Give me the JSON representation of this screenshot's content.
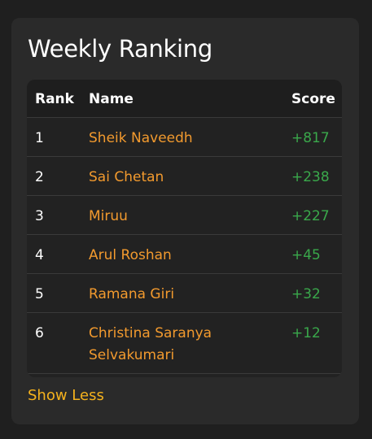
{
  "ranking": {
    "title": "Weekly Ranking",
    "columns": {
      "rank": "Rank",
      "name": "Name",
      "score": "Score"
    },
    "rows": [
      {
        "rank": "1",
        "name": "Sheik Naveedh",
        "score": "+817"
      },
      {
        "rank": "2",
        "name": "Sai Chetan",
        "score": "+238"
      },
      {
        "rank": "3",
        "name": "Miruu",
        "score": "+227"
      },
      {
        "rank": "4",
        "name": "Arul Roshan",
        "score": "+45"
      },
      {
        "rank": "5",
        "name": "Ramana Giri",
        "score": "+32"
      },
      {
        "rank": "6",
        "name": "Christina Saranya Selvakumari",
        "score": "+12"
      }
    ],
    "toggle_label": "Show Less"
  },
  "colors": {
    "background": "#1f1f1f",
    "card": "#2a2a2a",
    "name_accent": "#f29a2e",
    "score_positive": "#3aa84b",
    "link": "#f5b21d"
  }
}
